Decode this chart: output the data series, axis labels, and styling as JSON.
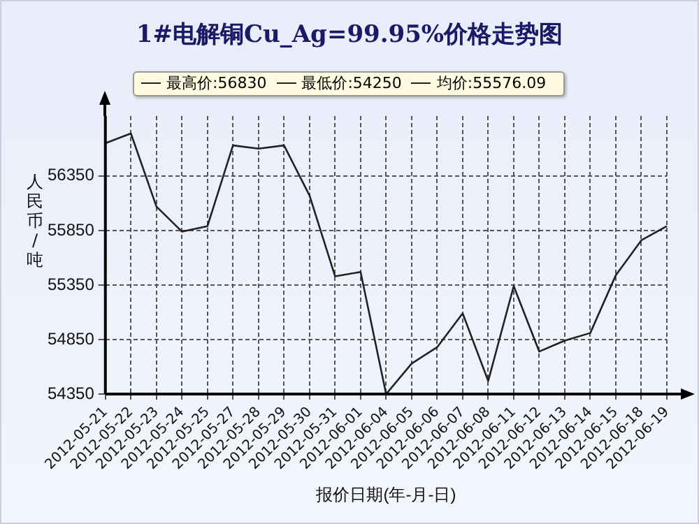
{
  "chart_data": {
    "type": "line",
    "title": "1#电解铜Cu_Ag=99.95%价格走势图",
    "annotations": [
      "最高价:56830",
      "最低价:54250",
      "均价:55576.09"
    ],
    "xlabel": "报价日期(年-月-日)",
    "ylabel": "人民币/吨",
    "categories": [
      "2012-05-21",
      "2012-05-22",
      "2012-05-23",
      "2012-05-24",
      "2012-05-25",
      "2012-05-27",
      "2012-05-28",
      "2012-05-29",
      "2012-05-30",
      "2012-05-31",
      "2012-06-01",
      "2012-06-04",
      "2012-06-05",
      "2012-06-06",
      "2012-06-07",
      "2012-06-08",
      "2012-06-11",
      "2012-06-12",
      "2012-06-13",
      "2012-06-14",
      "2012-06-15",
      "2012-06-18",
      "2012-06-19"
    ],
    "series": [
      {
        "color": "#222222",
        "values": [
          56650,
          56740,
          56070,
          55840,
          55890,
          56630,
          56600,
          56630,
          56170,
          55430,
          55470,
          54350,
          54630,
          54780,
          55090,
          54470,
          55340,
          54740,
          54840,
          54910,
          55440,
          55760,
          55890
        ]
      }
    ],
    "ylim": [
      54350,
      56900
    ],
    "yticks": [
      54350,
      54850,
      55350,
      55850,
      56350
    ],
    "grid": true,
    "legend": false,
    "marker": "none",
    "line_style": "solid"
  }
}
